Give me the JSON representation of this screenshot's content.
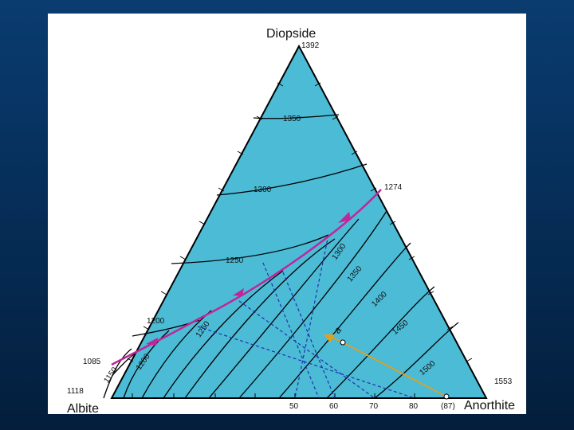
{
  "vertices": {
    "top": {
      "label": "Diopside",
      "temp": "1392"
    },
    "left": {
      "label": "Albite",
      "temp": "1118"
    },
    "right": {
      "label": "Anorthite",
      "temp": "1553"
    }
  },
  "cotectic_temps": {
    "start": "1274",
    "end": "1085"
  },
  "isotherms_left": [
    "1350",
    "1300",
    "1250",
    "1200",
    "1150"
  ],
  "isotherms_right": [
    "1300",
    "1350",
    "1400",
    "1450",
    "1500",
    "1250",
    "1200"
  ],
  "base_ticks": [
    "50",
    "60",
    "70",
    "80",
    "(87)"
  ],
  "point_label": "a",
  "colors": {
    "field": "#4bbbd6",
    "cotectic": "#c0269a",
    "tieline": "#2233aa",
    "path": "#e0a020"
  }
}
